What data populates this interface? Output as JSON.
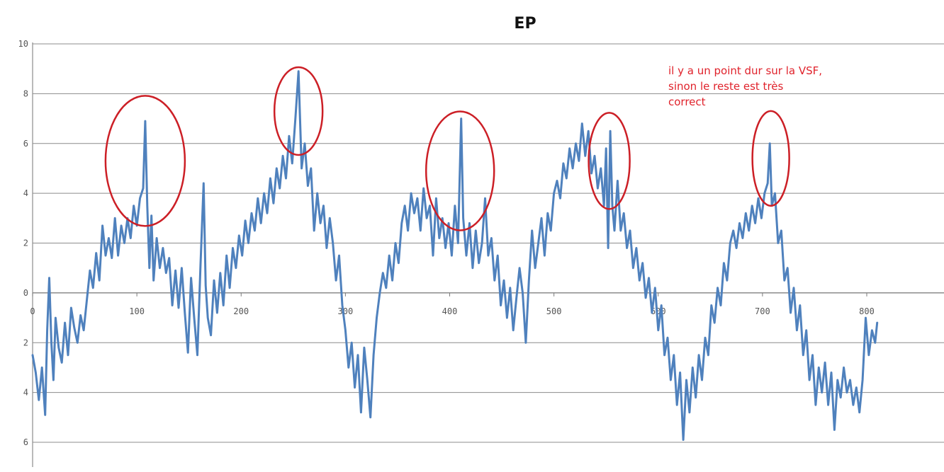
{
  "chart_data": {
    "type": "line",
    "title": "EP",
    "xlabel": "",
    "ylabel": "",
    "xlim": [
      0,
      810
    ],
    "ylim": [
      -6,
      10
    ],
    "grid": "horizontal",
    "legend": "none",
    "x_ticks": [
      {
        "value": 0,
        "label": "0"
      },
      {
        "value": 100,
        "label": "100"
      },
      {
        "value": 200,
        "label": "200"
      },
      {
        "value": 300,
        "label": "300"
      },
      {
        "value": 400,
        "label": "400"
      },
      {
        "value": 500,
        "label": "500"
      },
      {
        "value": 600,
        "label": "600"
      },
      {
        "value": 700,
        "label": "700"
      },
      {
        "value": 800,
        "label": "800"
      }
    ],
    "y_ticks": [
      {
        "value": 10,
        "label": "10"
      },
      {
        "value": 8,
        "label": "8"
      },
      {
        "value": 6,
        "label": "6"
      },
      {
        "value": 4,
        "label": "4"
      },
      {
        "value": 2,
        "label": "2"
      },
      {
        "value": 0,
        "label": "0"
      },
      {
        "value": -2,
        "label": "2"
      },
      {
        "value": -4,
        "label": "4"
      },
      {
        "value": -6,
        "label": "6"
      }
    ],
    "series": [
      {
        "color": "#4f81bd",
        "points": [
          [
            0,
            -2.5
          ],
          [
            3,
            -3.2
          ],
          [
            6,
            -4.3
          ],
          [
            9,
            -3.0
          ],
          [
            12,
            -4.9
          ],
          [
            14,
            -1.5
          ],
          [
            16,
            0.6
          ],
          [
            18,
            -2.0
          ],
          [
            20,
            -3.5
          ],
          [
            22,
            -1.0
          ],
          [
            25,
            -2.2
          ],
          [
            28,
            -2.8
          ],
          [
            31,
            -1.2
          ],
          [
            34,
            -2.5
          ],
          [
            37,
            -0.6
          ],
          [
            40,
            -1.4
          ],
          [
            43,
            -2.0
          ],
          [
            46,
            -0.9
          ],
          [
            49,
            -1.5
          ],
          [
            52,
            -0.3
          ],
          [
            55,
            0.9
          ],
          [
            58,
            0.2
          ],
          [
            61,
            1.6
          ],
          [
            64,
            0.5
          ],
          [
            67,
            2.7
          ],
          [
            70,
            1.5
          ],
          [
            73,
            2.2
          ],
          [
            76,
            1.4
          ],
          [
            79,
            3.0
          ],
          [
            82,
            1.5
          ],
          [
            85,
            2.7
          ],
          [
            88,
            2.0
          ],
          [
            91,
            3.0
          ],
          [
            94,
            2.2
          ],
          [
            97,
            3.5
          ],
          [
            100,
            2.7
          ],
          [
            103,
            3.8
          ],
          [
            106,
            4.2
          ],
          [
            108,
            6.9
          ],
          [
            110,
            3.5
          ],
          [
            112,
            1.0
          ],
          [
            114,
            3.1
          ],
          [
            116,
            0.5
          ],
          [
            119,
            2.2
          ],
          [
            122,
            1.0
          ],
          [
            125,
            1.8
          ],
          [
            128,
            0.8
          ],
          [
            131,
            1.4
          ],
          [
            134,
            -0.5
          ],
          [
            137,
            0.9
          ],
          [
            140,
            -0.6
          ],
          [
            143,
            1.0
          ],
          [
            146,
            -0.8
          ],
          [
            149,
            -2.4
          ],
          [
            152,
            0.6
          ],
          [
            155,
            -1.0
          ],
          [
            158,
            -2.5
          ],
          [
            161,
            1.1
          ],
          [
            164,
            4.4
          ],
          [
            166,
            0.3
          ],
          [
            168,
            -1.0
          ],
          [
            171,
            -1.7
          ],
          [
            174,
            0.5
          ],
          [
            177,
            -0.8
          ],
          [
            180,
            0.8
          ],
          [
            183,
            -0.5
          ],
          [
            186,
            1.5
          ],
          [
            189,
            0.2
          ],
          [
            192,
            1.8
          ],
          [
            195,
            1.0
          ],
          [
            198,
            2.3
          ],
          [
            201,
            1.5
          ],
          [
            204,
            2.9
          ],
          [
            207,
            2.0
          ],
          [
            210,
            3.2
          ],
          [
            213,
            2.5
          ],
          [
            216,
            3.8
          ],
          [
            219,
            2.8
          ],
          [
            222,
            4.0
          ],
          [
            225,
            3.2
          ],
          [
            228,
            4.6
          ],
          [
            231,
            3.6
          ],
          [
            234,
            5.0
          ],
          [
            237,
            4.2
          ],
          [
            240,
            5.5
          ],
          [
            243,
            4.6
          ],
          [
            246,
            6.3
          ],
          [
            249,
            5.2
          ],
          [
            252,
            7.0
          ],
          [
            255,
            8.9
          ],
          [
            258,
            5.0
          ],
          [
            261,
            6.0
          ],
          [
            264,
            4.3
          ],
          [
            267,
            5.0
          ],
          [
            270,
            2.5
          ],
          [
            273,
            4.0
          ],
          [
            276,
            2.8
          ],
          [
            279,
            3.5
          ],
          [
            282,
            1.8
          ],
          [
            285,
            3.0
          ],
          [
            288,
            2.0
          ],
          [
            291,
            0.5
          ],
          [
            294,
            1.5
          ],
          [
            297,
            -0.5
          ],
          [
            300,
            -1.5
          ],
          [
            303,
            -3.0
          ],
          [
            306,
            -2.0
          ],
          [
            309,
            -3.8
          ],
          [
            312,
            -2.5
          ],
          [
            315,
            -4.8
          ],
          [
            318,
            -2.2
          ],
          [
            321,
            -3.5
          ],
          [
            324,
            -5.0
          ],
          [
            327,
            -2.5
          ],
          [
            330,
            -1.0
          ],
          [
            333,
            0.0
          ],
          [
            336,
            0.8
          ],
          [
            339,
            0.2
          ],
          [
            342,
            1.5
          ],
          [
            345,
            0.5
          ],
          [
            348,
            2.0
          ],
          [
            351,
            1.2
          ],
          [
            354,
            2.8
          ],
          [
            357,
            3.5
          ],
          [
            360,
            2.5
          ],
          [
            363,
            4.0
          ],
          [
            366,
            3.2
          ],
          [
            369,
            3.8
          ],
          [
            372,
            2.5
          ],
          [
            375,
            4.2
          ],
          [
            378,
            3.0
          ],
          [
            381,
            3.5
          ],
          [
            384,
            1.5
          ],
          [
            387,
            3.8
          ],
          [
            390,
            2.2
          ],
          [
            393,
            3.0
          ],
          [
            396,
            1.8
          ],
          [
            399,
            2.8
          ],
          [
            402,
            1.5
          ],
          [
            405,
            3.5
          ],
          [
            408,
            2.0
          ],
          [
            411,
            7.0
          ],
          [
            413,
            3.0
          ],
          [
            416,
            1.5
          ],
          [
            419,
            2.8
          ],
          [
            422,
            1.0
          ],
          [
            425,
            2.5
          ],
          [
            428,
            1.2
          ],
          [
            431,
            2.0
          ],
          [
            434,
            3.8
          ],
          [
            437,
            1.5
          ],
          [
            440,
            2.2
          ],
          [
            443,
            0.5
          ],
          [
            446,
            1.5
          ],
          [
            449,
            -0.5
          ],
          [
            452,
            0.5
          ],
          [
            455,
            -1.0
          ],
          [
            458,
            0.2
          ],
          [
            461,
            -1.5
          ],
          [
            464,
            -0.2
          ],
          [
            467,
            1.0
          ],
          [
            470,
            0.0
          ],
          [
            473,
            -2.0
          ],
          [
            476,
            0.5
          ],
          [
            479,
            2.5
          ],
          [
            482,
            1.0
          ],
          [
            485,
            2.0
          ],
          [
            488,
            3.0
          ],
          [
            491,
            1.5
          ],
          [
            494,
            3.2
          ],
          [
            497,
            2.5
          ],
          [
            500,
            4.0
          ],
          [
            503,
            4.5
          ],
          [
            506,
            3.8
          ],
          [
            509,
            5.2
          ],
          [
            512,
            4.6
          ],
          [
            515,
            5.8
          ],
          [
            518,
            5.0
          ],
          [
            521,
            6.0
          ],
          [
            524,
            5.3
          ],
          [
            527,
            6.8
          ],
          [
            530,
            5.5
          ],
          [
            533,
            6.5
          ],
          [
            536,
            4.8
          ],
          [
            539,
            5.5
          ],
          [
            542,
            4.2
          ],
          [
            545,
            5.0
          ],
          [
            548,
            3.5
          ],
          [
            550,
            5.8
          ],
          [
            552,
            1.8
          ],
          [
            554,
            6.5
          ],
          [
            556,
            3.5
          ],
          [
            558,
            2.5
          ],
          [
            561,
            4.5
          ],
          [
            564,
            2.5
          ],
          [
            567,
            3.2
          ],
          [
            570,
            1.8
          ],
          [
            573,
            2.5
          ],
          [
            576,
            1.0
          ],
          [
            579,
            1.8
          ],
          [
            582,
            0.5
          ],
          [
            585,
            1.2
          ],
          [
            588,
            -0.2
          ],
          [
            591,
            0.6
          ],
          [
            594,
            -0.8
          ],
          [
            597,
            0.2
          ],
          [
            600,
            -1.5
          ],
          [
            603,
            -0.5
          ],
          [
            606,
            -2.5
          ],
          [
            609,
            -1.8
          ],
          [
            612,
            -3.5
          ],
          [
            615,
            -2.5
          ],
          [
            618,
            -4.5
          ],
          [
            621,
            -3.2
          ],
          [
            624,
            -5.9
          ],
          [
            627,
            -3.5
          ],
          [
            630,
            -4.8
          ],
          [
            633,
            -3.0
          ],
          [
            636,
            -4.2
          ],
          [
            639,
            -2.5
          ],
          [
            642,
            -3.5
          ],
          [
            645,
            -1.8
          ],
          [
            648,
            -2.5
          ],
          [
            651,
            -0.5
          ],
          [
            654,
            -1.2
          ],
          [
            657,
            0.2
          ],
          [
            660,
            -0.5
          ],
          [
            663,
            1.2
          ],
          [
            666,
            0.5
          ],
          [
            669,
            2.0
          ],
          [
            672,
            2.5
          ],
          [
            675,
            1.8
          ],
          [
            678,
            2.8
          ],
          [
            681,
            2.2
          ],
          [
            684,
            3.2
          ],
          [
            687,
            2.5
          ],
          [
            690,
            3.5
          ],
          [
            693,
            2.8
          ],
          [
            696,
            3.8
          ],
          [
            699,
            3.0
          ],
          [
            702,
            4.0
          ],
          [
            705,
            4.4
          ],
          [
            707,
            6.0
          ],
          [
            709,
            3.5
          ],
          [
            712,
            4.0
          ],
          [
            715,
            2.0
          ],
          [
            718,
            2.5
          ],
          [
            721,
            0.5
          ],
          [
            724,
            1.0
          ],
          [
            727,
            -0.8
          ],
          [
            730,
            0.2
          ],
          [
            733,
            -1.5
          ],
          [
            736,
            -0.5
          ],
          [
            739,
            -2.5
          ],
          [
            742,
            -1.5
          ],
          [
            745,
            -3.5
          ],
          [
            748,
            -2.5
          ],
          [
            751,
            -4.5
          ],
          [
            754,
            -3.0
          ],
          [
            757,
            -4.0
          ],
          [
            760,
            -2.8
          ],
          [
            763,
            -4.5
          ],
          [
            766,
            -3.2
          ],
          [
            769,
            -5.5
          ],
          [
            772,
            -3.5
          ],
          [
            775,
            -4.2
          ],
          [
            778,
            -3.0
          ],
          [
            781,
            -4.0
          ],
          [
            784,
            -3.5
          ],
          [
            787,
            -4.5
          ],
          [
            790,
            -3.8
          ],
          [
            793,
            -4.8
          ],
          [
            796,
            -3.5
          ],
          [
            799,
            -1.0
          ],
          [
            802,
            -2.5
          ],
          [
            805,
            -1.5
          ],
          [
            808,
            -2.0
          ],
          [
            810,
            -1.2
          ]
        ]
      }
    ],
    "annotation": {
      "lines": [
        "il y a un point dur sur la VSF,",
        "sinon le reste est très",
        "correct"
      ],
      "color": "#e0222b"
    },
    "highlight_circles": [
      {
        "x": 108,
        "y": 5.3,
        "color": "#cc1f26"
      },
      {
        "x": 255,
        "y": 7.3,
        "color": "#cc1f26"
      },
      {
        "x": 410,
        "y": 4.9,
        "color": "#cc1f26"
      },
      {
        "x": 553,
        "y": 5.3,
        "color": "#cc1f26"
      },
      {
        "x": 708,
        "y": 5.4,
        "color": "#cc1f26"
      }
    ]
  }
}
